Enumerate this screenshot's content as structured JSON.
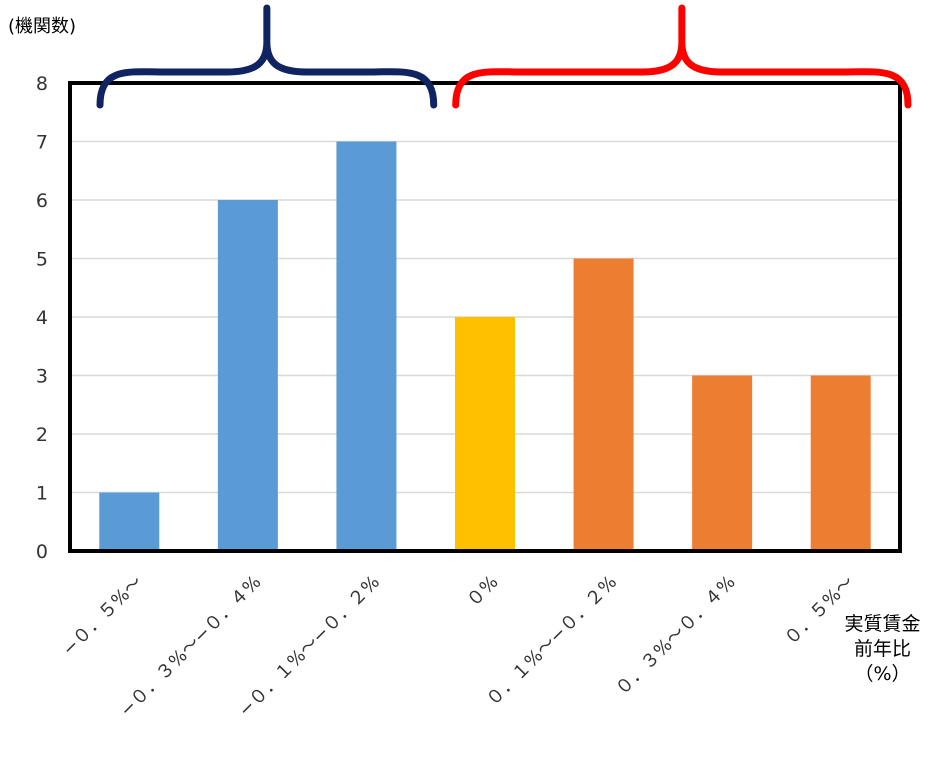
{
  "chart_data": {
    "type": "bar",
    "ylabel": "(機関数)",
    "xlabel_lines": [
      "実質賃金",
      "前年比",
      "（%）"
    ],
    "ylim": [
      0,
      8
    ],
    "yticks": [
      0,
      1,
      2,
      3,
      4,
      5,
      6,
      7,
      8
    ],
    "grid": true,
    "categories": [
      "−０．５%〜",
      "−０．３%〜−０．４%",
      "−０．１%〜−０．２%",
      "０%",
      "０．１%〜−０．２%",
      "０．３%〜０．４%",
      "０．５%〜"
    ],
    "values": [
      1,
      6,
      7,
      4,
      5,
      3,
      3
    ],
    "bar_colors": [
      "#5B9BD5",
      "#5B9BD5",
      "#5B9BD5",
      "#FFC000",
      "#ED7D31",
      "#ED7D31",
      "#ED7D31"
    ],
    "annotations": [
      {
        "kind": "brace",
        "color": "#0F2461",
        "from_category": 0,
        "to_category": 2
      },
      {
        "kind": "brace",
        "color": "#FF0000",
        "from_category": 3,
        "to_category": 6
      }
    ]
  }
}
